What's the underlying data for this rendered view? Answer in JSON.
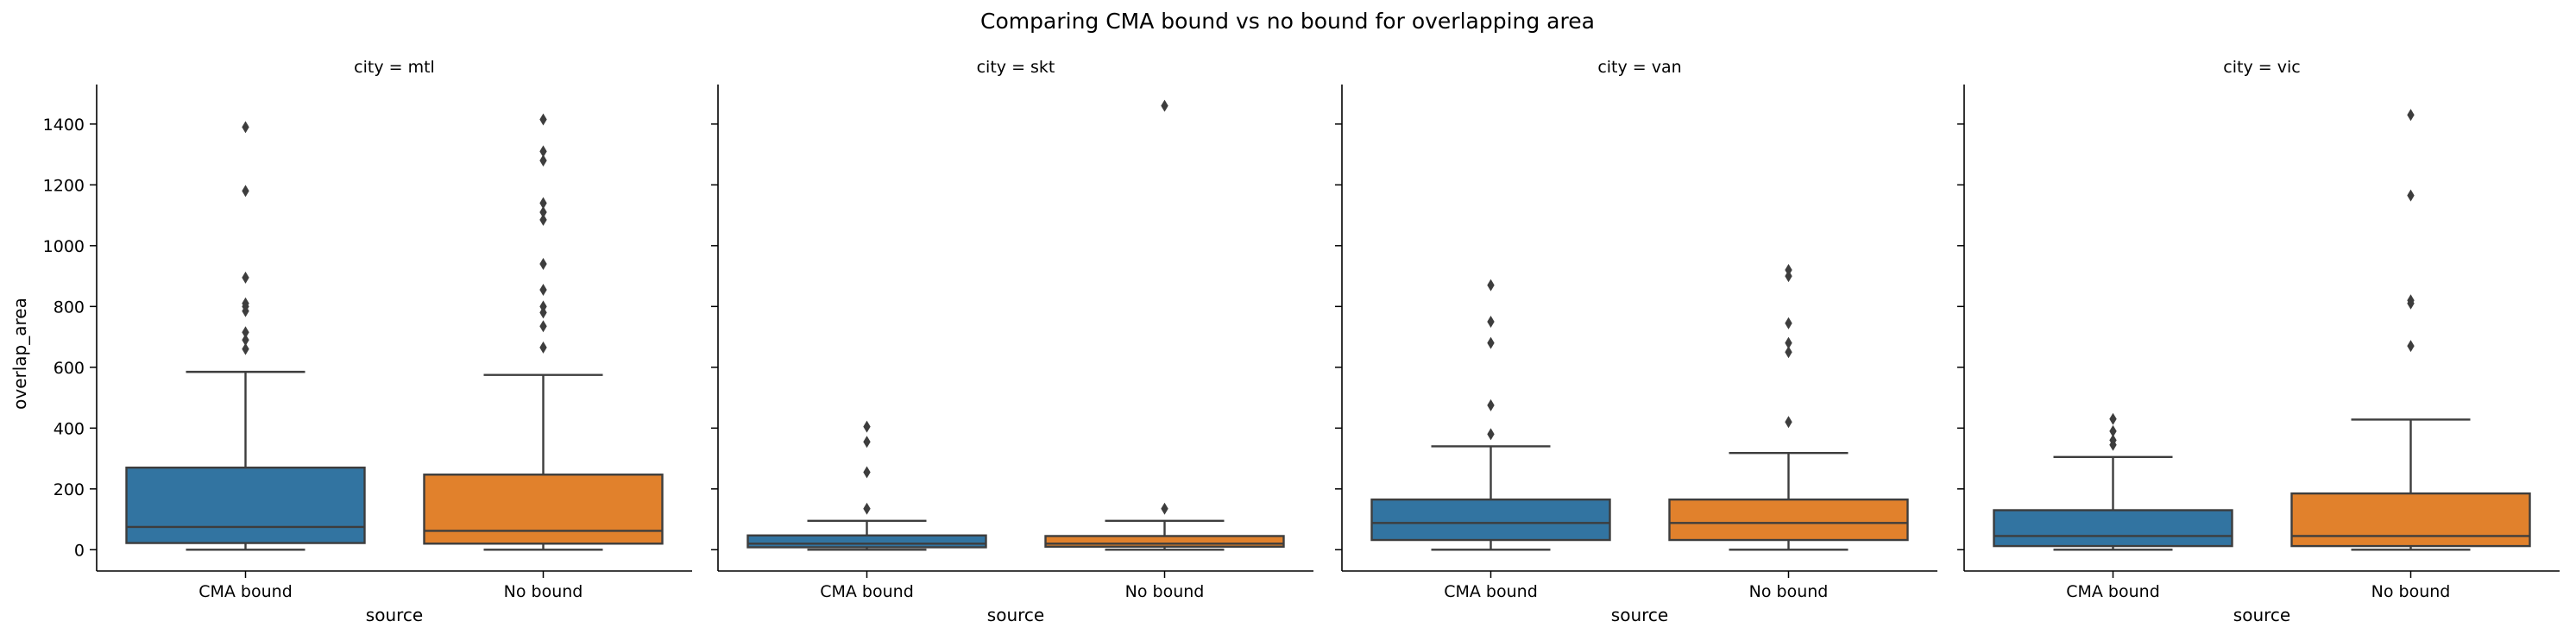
{
  "chart_data": {
    "type": "box",
    "title": "Comparing CMA bound vs no bound for overlapping area",
    "ylabel": "overlap_area",
    "xlabel": "source",
    "ylim": [
      -70,
      1530
    ],
    "yticks": [
      0,
      200,
      400,
      600,
      800,
      1000,
      1200,
      1400
    ],
    "categories": [
      "CMA bound",
      "No bound"
    ],
    "colors": {
      "CMA bound": "#3274a1",
      "No bound": "#e1812c"
    },
    "facets": [
      {
        "title": "city = mtl",
        "boxes": [
          {
            "source": "CMA bound",
            "min": 0,
            "q1": 22,
            "median": 75,
            "q3": 270,
            "max": 585,
            "outliers": [
              660,
              690,
              715,
              785,
              800,
              810,
              895,
              1180,
              1390
            ]
          },
          {
            "source": "No bound",
            "min": 0,
            "q1": 20,
            "median": 62,
            "q3": 247,
            "max": 575,
            "outliers": [
              665,
              735,
              780,
              800,
              855,
              940,
              1085,
              1110,
              1140,
              1280,
              1310,
              1415
            ]
          }
        ]
      },
      {
        "title": "city = skt",
        "boxes": [
          {
            "source": "CMA bound",
            "min": 0,
            "q1": 8,
            "median": 20,
            "q3": 47,
            "max": 95,
            "outliers": [
              135,
              255,
              355,
              405
            ]
          },
          {
            "source": "No bound",
            "min": 0,
            "q1": 10,
            "median": 20,
            "q3": 45,
            "max": 95,
            "outliers": [
              135,
              1460
            ]
          }
        ]
      },
      {
        "title": "city = van",
        "boxes": [
          {
            "source": "CMA bound",
            "min": 0,
            "q1": 32,
            "median": 88,
            "q3": 165,
            "max": 340,
            "outliers": [
              380,
              475,
              680,
              750,
              870
            ]
          },
          {
            "source": "No bound",
            "min": 0,
            "q1": 32,
            "median": 88,
            "q3": 165,
            "max": 318,
            "outliers": [
              420,
              650,
              680,
              745,
              900,
              920
            ]
          }
        ]
      },
      {
        "title": "city = vic",
        "boxes": [
          {
            "source": "CMA bound",
            "min": 0,
            "q1": 12,
            "median": 45,
            "q3": 130,
            "max": 305,
            "outliers": [
              345,
              360,
              390,
              430
            ]
          },
          {
            "source": "No bound",
            "min": 0,
            "q1": 12,
            "median": 45,
            "q3": 185,
            "max": 428,
            "outliers": [
              670,
              810,
              820,
              1165,
              1430
            ]
          }
        ]
      }
    ]
  }
}
